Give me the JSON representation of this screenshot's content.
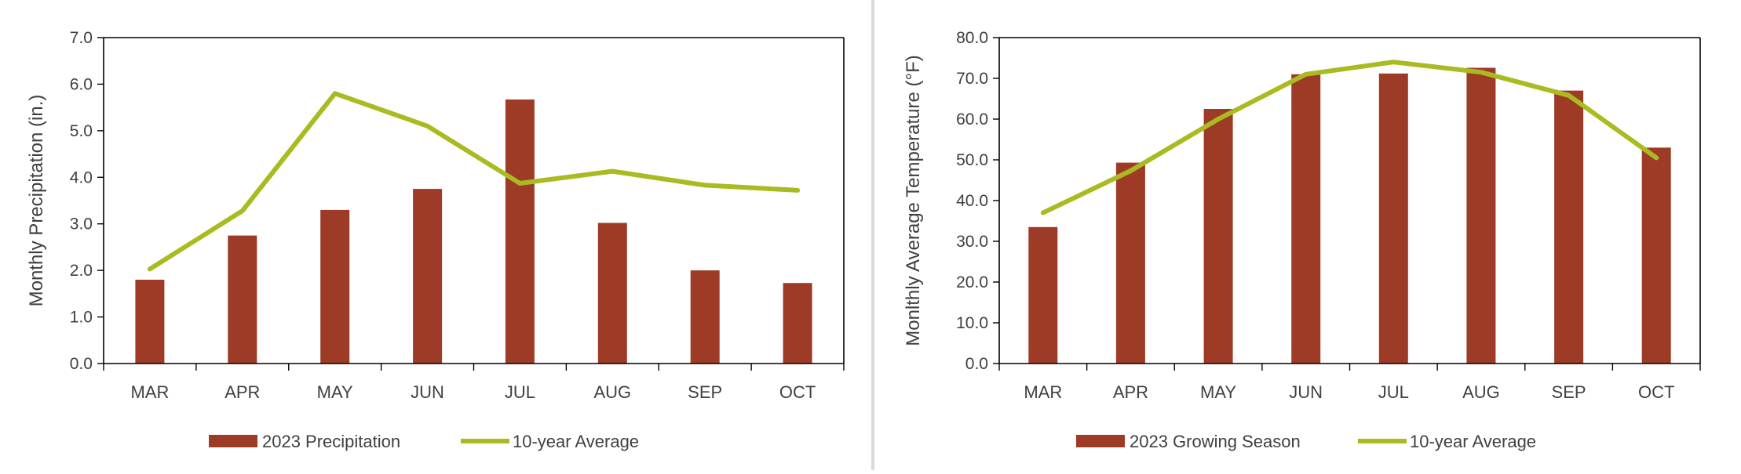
{
  "colors": {
    "bar": "#9E3B26",
    "line": "#AABB22",
    "axis": "#000000",
    "text": "#404040",
    "divider": "#d9d9d9"
  },
  "chart_data": [
    {
      "type": "bar",
      "title": "",
      "xlabel": "",
      "ylabel": "Monthly Precipitation (in.)",
      "categories": [
        "MAR",
        "APR",
        "MAY",
        "JUN",
        "JUL",
        "AUG",
        "SEP",
        "OCT"
      ],
      "ylim": [
        0,
        7
      ],
      "ytick_step": 1,
      "ytick_labels": [
        "0.0",
        "1.0",
        "2.0",
        "3.0",
        "4.0",
        "5.0",
        "6.0",
        "7.0"
      ],
      "grid": false,
      "legend_position": "bottom",
      "series": [
        {
          "name": "2023 Precipitation",
          "type": "bar",
          "values": [
            1.8,
            2.75,
            3.3,
            3.75,
            5.67,
            3.02,
            2.0,
            1.73
          ]
        },
        {
          "name": "10-year Average",
          "type": "line",
          "values": [
            2.03,
            3.28,
            5.8,
            5.1,
            3.87,
            4.13,
            3.83,
            3.72
          ]
        }
      ]
    },
    {
      "type": "bar",
      "title": "",
      "xlabel": "",
      "ylabel": "Monlthly Average Temperature (°F)",
      "categories": [
        "MAR",
        "APR",
        "MAY",
        "JUN",
        "JUL",
        "AUG",
        "SEP",
        "OCT"
      ],
      "ylim": [
        0,
        80
      ],
      "ytick_step": 10,
      "ytick_labels": [
        "0.0",
        "10.0",
        "20.0",
        "30.0",
        "40.0",
        "50.0",
        "60.0",
        "70.0",
        "80.0"
      ],
      "grid": false,
      "legend_position": "bottom",
      "series": [
        {
          "name": "2023 Growing Season",
          "type": "bar",
          "values": [
            33.5,
            49.3,
            62.5,
            71.0,
            71.2,
            72.6,
            67.0,
            53.0
          ]
        },
        {
          "name": "10-year Average",
          "type": "line",
          "values": [
            37.0,
            47.3,
            60.0,
            71.0,
            74.0,
            71.5,
            65.8,
            50.5
          ]
        }
      ]
    }
  ]
}
